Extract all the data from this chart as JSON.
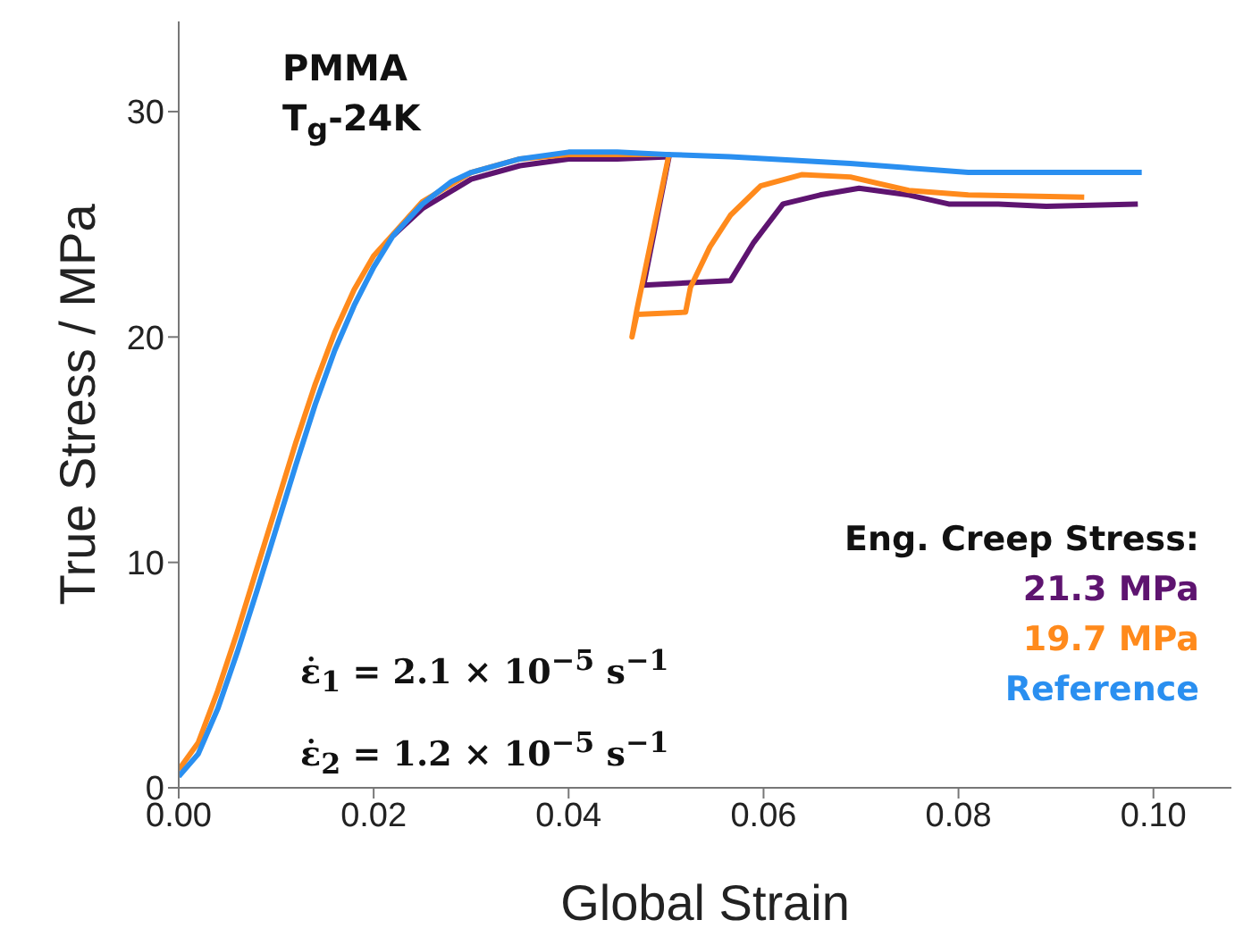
{
  "chart_data": {
    "type": "line",
    "title": "PMMA",
    "subtitle": "T$_{g}$-24K",
    "xlabel": "Global Strain",
    "ylabel": "True Stress / MPa",
    "legend_title": "Eng. Creep Stress:",
    "legend": "bottom right",
    "grid": false,
    "marker": "none",
    "line_style": "solid",
    "xlim": [
      0,
      0.108
    ],
    "xticks": [
      {
        "value": 0,
        "label": "0.00"
      },
      {
        "value": 0.02,
        "label": "0.02"
      },
      {
        "value": 0.04,
        "label": "0.04"
      },
      {
        "value": 0.06,
        "label": "0.06"
      },
      {
        "value": 0.08,
        "label": "0.08"
      },
      {
        "value": 0.1,
        "label": "0.10"
      }
    ],
    "ylim": [
      0,
      34
    ],
    "yticks": [
      0,
      10,
      20,
      30
    ],
    "annotations": [
      "ε̇$_{1}$ = 2.1 × 10$^{−5}$ s$^{−1}$",
      "ε̇$_{2}$ = 1.2 × 10$^{−5}$ s$^{−1}$"
    ],
    "series": [
      {
        "name": "21.3 MPa",
        "color": "#5e1470",
        "x": [
          0.022,
          0.025,
          0.03,
          0.035,
          0.04,
          0.045,
          0.0503,
          0.0477,
          0.052,
          0.0566,
          0.059,
          0.062,
          0.0658,
          0.0698,
          0.0749,
          0.079,
          0.0841,
          0.089,
          0.0984
        ],
        "values": [
          24.5,
          25.7,
          27,
          27.6,
          27.9,
          27.9,
          28,
          22.3,
          22.4,
          22.5,
          24.2,
          25.9,
          26.3,
          26.6,
          26.3,
          25.9,
          25.9,
          25.8,
          25.9
        ]
      },
      {
        "name": "19.7 MPa",
        "color": "#ff8a1c",
        "x": [
          0,
          0.002,
          0.004,
          0.006,
          0.008,
          0.01,
          0.012,
          0.014,
          0.016,
          0.018,
          0.02,
          0.025,
          0.03,
          0.035,
          0.04,
          0.045,
          0.0503,
          0.047,
          0.0465,
          0.047,
          0.052,
          0.0525,
          0.0545,
          0.0566,
          0.0597,
          0.0639,
          0.0689,
          0.0749,
          0.081,
          0.0929
        ],
        "values": [
          0.8,
          2,
          4.3,
          6.9,
          9.7,
          12.5,
          15.3,
          17.9,
          20.2,
          22.1,
          23.6,
          26,
          27.3,
          27.9,
          28.1,
          28.1,
          28.1,
          21.2,
          20,
          21,
          21.1,
          22.2,
          24,
          25.4,
          26.7,
          27.2,
          27.1,
          26.5,
          26.3,
          26.2
        ]
      },
      {
        "name": "Reference",
        "color": "#2a8ff0",
        "x": [
          0,
          0.002,
          0.004,
          0.006,
          0.008,
          0.01,
          0.012,
          0.014,
          0.016,
          0.018,
          0.02,
          0.022,
          0.025,
          0.028,
          0.03,
          0.035,
          0.04,
          0.045,
          0.05,
          0.0566,
          0.0689,
          0.081,
          0.0988
        ],
        "values": [
          0.5,
          1.5,
          3.5,
          6,
          8.7,
          11.5,
          14.3,
          17,
          19.4,
          21.4,
          23.1,
          24.5,
          25.9,
          26.9,
          27.3,
          27.9,
          28.2,
          28.2,
          28.1,
          28,
          27.7,
          27.3,
          27.3
        ]
      }
    ]
  }
}
